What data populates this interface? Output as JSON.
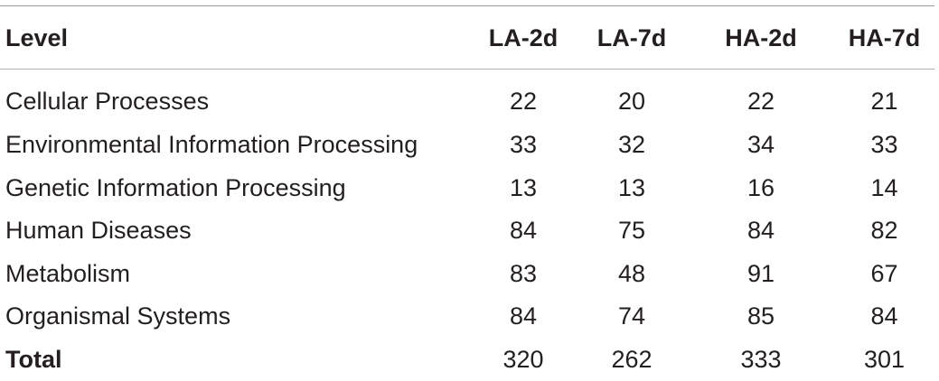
{
  "table": {
    "columns": [
      "Level",
      "LA-2d",
      "LA-7d",
      "HA-2d",
      "HA-7d"
    ],
    "rows": [
      {
        "level": "Cellular Processes",
        "la2d": "22",
        "la7d": "20",
        "ha2d": "22",
        "ha7d": "21"
      },
      {
        "level": "Environmental Information Processing",
        "la2d": "33",
        "la7d": "32",
        "ha2d": "34",
        "ha7d": "33"
      },
      {
        "level": "Genetic Information Processing",
        "la2d": "13",
        "la7d": "13",
        "ha2d": "16",
        "ha7d": "14"
      },
      {
        "level": "Human Diseases",
        "la2d": "84",
        "la7d": "75",
        "ha2d": "84",
        "ha7d": "82"
      },
      {
        "level": "Metabolism",
        "la2d": "83",
        "la7d": "48",
        "ha2d": "91",
        "ha7d": "67"
      },
      {
        "level": "Organismal Systems",
        "la2d": "84",
        "la7d": "74",
        "ha2d": "85",
        "ha7d": "84"
      }
    ],
    "total": {
      "level": "Total",
      "la2d": "320",
      "la7d": "262",
      "ha2d": "333",
      "ha7d": "301"
    }
  }
}
